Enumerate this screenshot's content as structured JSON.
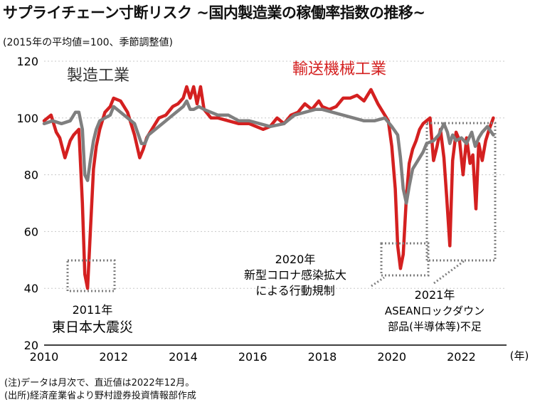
{
  "chart_data": {
    "type": "line",
    "title": "サプライチェーン寸断リスク ~国内製造業の稼働率指数の推移~",
    "unit_label": "(2015年の平均値=100、季節調整値)",
    "xlabel": "(年)",
    "ylim": [
      20,
      120
    ],
    "yticks": [
      20,
      40,
      60,
      80,
      100,
      120
    ],
    "xlim": [
      2010,
      2023.3
    ],
    "xticks": [
      2010,
      2012,
      2014,
      2016,
      2018,
      2020,
      2022
    ],
    "grid": "horizontal",
    "series": [
      {
        "name": "製造工業",
        "color": "#7f7f7f",
        "x": [
          2010.0,
          2010.25,
          2010.5,
          2010.75,
          2010.9,
          2011.0,
          2011.1,
          2011.17,
          2011.25,
          2011.33,
          2011.42,
          2011.5,
          2011.6,
          2011.75,
          2011.9,
          2012.0,
          2012.2,
          2012.4,
          2012.6,
          2012.8,
          2012.9,
          2013.0,
          2013.2,
          2013.4,
          2013.6,
          2013.8,
          2014.0,
          2014.1,
          2014.2,
          2014.3,
          2014.45,
          2014.6,
          2014.8,
          2015.0,
          2015.3,
          2015.6,
          2015.9,
          2016.2,
          2016.5,
          2016.9,
          2017.2,
          2017.5,
          2017.8,
          2018.0,
          2018.3,
          2018.6,
          2018.9,
          2019.2,
          2019.5,
          2019.8,
          2020.0,
          2020.17,
          2020.25,
          2020.33,
          2020.42,
          2020.5,
          2020.6,
          2020.75,
          2020.9,
          2021.0,
          2021.2,
          2021.35,
          2021.5,
          2021.6,
          2021.67,
          2021.75,
          2021.85,
          2022.0,
          2022.15,
          2022.3,
          2022.4,
          2022.5,
          2022.6,
          2022.75,
          2022.92
        ],
        "values": [
          98,
          99,
          98,
          99,
          102,
          102,
          96,
          80,
          78,
          85,
          92,
          96,
          99,
          100,
          101,
          104,
          102,
          100,
          98,
          91,
          91,
          94,
          96,
          98,
          100,
          102,
          104,
          106,
          103,
          103,
          104,
          103,
          102,
          101,
          101,
          99,
          99,
          98,
          97,
          98,
          101,
          102,
          103,
          103,
          102,
          101,
          100,
          99,
          99,
          100,
          97,
          94,
          86,
          75,
          70,
          76,
          82,
          85,
          88,
          91,
          92,
          94,
          98,
          95,
          91,
          94,
          92,
          93,
          91,
          95,
          90,
          93,
          95,
          97,
          94
        ]
      },
      {
        "name": "輸送機械工業",
        "color": "#d42020",
        "x": [
          2010.0,
          2010.2,
          2010.35,
          2010.45,
          2010.6,
          2010.75,
          2010.85,
          2011.0,
          2011.1,
          2011.17,
          2011.25,
          2011.33,
          2011.42,
          2011.5,
          2011.6,
          2011.75,
          2011.9,
          2012.0,
          2012.2,
          2012.4,
          2012.6,
          2012.75,
          2012.85,
          2012.95,
          2013.1,
          2013.3,
          2013.5,
          2013.7,
          2013.85,
          2014.0,
          2014.1,
          2014.2,
          2014.3,
          2014.4,
          2014.5,
          2014.6,
          2014.8,
          2015.0,
          2015.3,
          2015.6,
          2015.9,
          2016.1,
          2016.3,
          2016.5,
          2016.7,
          2016.9,
          2017.1,
          2017.3,
          2017.5,
          2017.7,
          2017.9,
          2018.0,
          2018.2,
          2018.4,
          2018.6,
          2018.8,
          2019.0,
          2019.2,
          2019.4,
          2019.6,
          2019.8,
          2019.9,
          2020.0,
          2020.1,
          2020.17,
          2020.25,
          2020.33,
          2020.42,
          2020.5,
          2020.6,
          2020.7,
          2020.8,
          2020.9,
          2021.0,
          2021.1,
          2021.2,
          2021.3,
          2021.4,
          2021.5,
          2021.58,
          2021.67,
          2021.75,
          2021.85,
          2021.95,
          2022.05,
          2022.15,
          2022.25,
          2022.33,
          2022.42,
          2022.5,
          2022.6,
          2022.7,
          2022.8,
          2022.92
        ],
        "values": [
          99,
          101,
          95,
          93,
          86,
          92,
          94,
          96,
          70,
          45,
          40,
          60,
          82,
          90,
          96,
          102,
          104,
          107,
          106,
          102,
          94,
          86,
          89,
          93,
          96,
          100,
          101,
          104,
          105,
          107,
          111,
          107,
          111,
          105,
          111,
          103,
          100,
          100,
          99,
          98,
          98,
          97,
          96,
          97,
          100,
          98,
          101,
          102,
          105,
          103,
          106,
          104,
          103,
          104,
          107,
          107,
          108,
          106,
          110,
          105,
          101,
          99,
          90,
          75,
          55,
          47,
          52,
          72,
          84,
          89,
          92,
          96,
          98,
          99,
          100,
          85,
          90,
          96,
          86,
          72,
          55,
          85,
          95,
          92,
          80,
          93,
          84,
          87,
          68,
          91,
          85,
          92,
          96,
          100
        ]
      }
    ],
    "labels": {
      "series_gray": "製造工業",
      "series_red": "輸送機械工業"
    },
    "annotations": [
      {
        "lines": [
          "2011年",
          "東日本大震災"
        ]
      },
      {
        "lines": [
          "2020年",
          "新型コロナ感染拡大",
          "による行動規制"
        ]
      },
      {
        "lines": [
          "2021年",
          "ASEANロックダウン",
          "部品(半導体等)不足"
        ]
      }
    ]
  },
  "notes": [
    "(注)データは月次で、直近値は2022年12月。",
    "(出所)経済産業省より野村證券投資情報部作成"
  ]
}
